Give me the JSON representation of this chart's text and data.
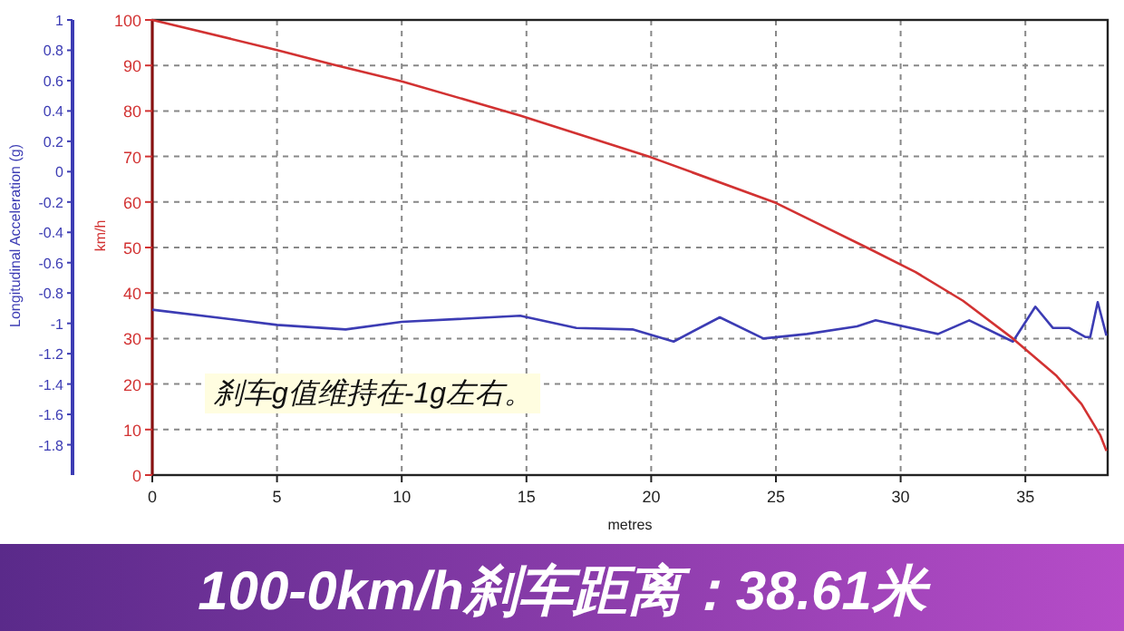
{
  "chart_data": {
    "type": "line",
    "title": "100-0km/h刹车距离：38.61米",
    "xlabel": "metres",
    "ylabel": "Longitudinal Acceleration (g)",
    "y2label": "km/h",
    "annotations": [
      "刹车g值维持在-1g左右。"
    ],
    "xlim": [
      0,
      38.3
    ],
    "xticks": [
      0,
      5,
      10,
      15,
      20,
      25,
      30,
      35
    ],
    "ylim": [
      -2,
      1
    ],
    "yticks": [
      1,
      0.8,
      0.6,
      0.4,
      0.2,
      0,
      -0.2,
      -0.4,
      -0.6,
      -0.8,
      -1,
      -1.2,
      -1.4,
      -1.6,
      -1.8
    ],
    "y2lim": [
      0,
      100
    ],
    "y2ticks": [
      0,
      10,
      20,
      30,
      40,
      50,
      60,
      70,
      80,
      90,
      100
    ],
    "grid": true,
    "series": [
      {
        "color": "#3c3cb4",
        "x": [
          0,
          5,
          7.75,
          10,
          14.75,
          17,
          19.25,
          20.9,
          22.75,
          24.5,
          26.25,
          28.25,
          29,
          31.5,
          32.75,
          34.5,
          35.4,
          36.1,
          36.75,
          37.4,
          37.6,
          37.9,
          38.25
        ],
        "values": [
          -0.91,
          -1.01,
          -1.04,
          -0.99,
          -0.95,
          -1.03,
          -1.04,
          -1.12,
          -0.96,
          -1.1,
          -1.07,
          -1.02,
          -0.98,
          -1.07,
          -0.98,
          -1.12,
          -0.89,
          -1.03,
          -1.03,
          -1.09,
          -1.09,
          -0.86,
          -1.08
        ]
      },
      {
        "color": "#d23232",
        "axis": "y2",
        "x": [
          0,
          5,
          7.25,
          10,
          14.75,
          20,
          25,
          28.75,
          30.6,
          32.5,
          34.5,
          36.25,
          37.25,
          38,
          38.25
        ],
        "values": [
          100,
          93.4,
          90.2,
          86.5,
          79,
          69.8,
          59.8,
          49.7,
          44.6,
          38.3,
          30,
          21.8,
          15.6,
          8.8,
          5.3
        ]
      }
    ]
  }
}
